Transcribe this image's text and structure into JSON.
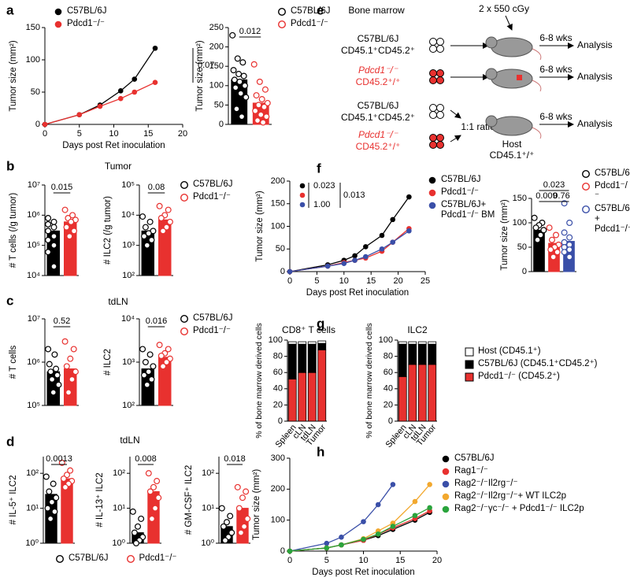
{
  "chart_data": [
    {
      "type": "line",
      "panel": "a",
      "xlabel": "Days post Ret inoculation",
      "ylabel": "Tumor size (mm²)",
      "x": [
        0,
        5,
        8,
        11,
        13,
        16
      ],
      "xlim": [
        0,
        20
      ],
      "xticks": [
        0,
        5,
        10,
        15,
        20
      ],
      "ylim": [
        0,
        150
      ],
      "yticks": [
        0,
        50,
        100,
        150
      ],
      "series": [
        {
          "name": "C57BL/6J",
          "color": "#000000",
          "values": [
            0,
            15,
            30,
            52,
            70,
            118
          ]
        },
        {
          "name": "Pdcd1⁻/⁻",
          "color": "#e8312f",
          "values": [
            0,
            15,
            28,
            40,
            50,
            65
          ]
        }
      ],
      "annotations": [
        "0.07"
      ]
    },
    {
      "type": "bar",
      "ylabel": "Tumor size (mm²)",
      "ylim": [
        0,
        250
      ],
      "yticks": [
        0,
        50,
        100,
        150,
        200,
        250
      ],
      "series": [
        {
          "name": "C57BL/6J",
          "color": "#000000",
          "values": [
            115
          ],
          "points": [
            230,
            170,
            160,
            140,
            130,
            125,
            115,
            110,
            100,
            95,
            80,
            70,
            40,
            20
          ]
        },
        {
          "name": "Pdcd1⁻/⁻",
          "color": "#e8312f",
          "values": [
            55
          ],
          "points": [
            155,
            110,
            90,
            75,
            65,
            55,
            50,
            45,
            35,
            25,
            20,
            10,
            5
          ]
        }
      ],
      "annotations": [
        "0.012"
      ]
    },
    {
      "type": "bar",
      "panel": "b",
      "title": "Tumor",
      "ylabel": "# T cells (/g tumor)",
      "log": true,
      "ylim": [
        10000,
        10000000
      ],
      "yticks": [
        {
          "value": 10000,
          "label": "10⁴"
        },
        {
          "value": 100000,
          "label": "10⁵"
        },
        {
          "value": 1000000,
          "label": "10⁶"
        },
        {
          "value": 10000000,
          "label": "10⁷"
        }
      ],
      "series": [
        {
          "color": "#000000",
          "values": [
            300000
          ],
          "points": [
            800000,
            600000,
            500000,
            400000,
            300000,
            200000,
            150000,
            100000,
            60000,
            20000
          ]
        },
        {
          "color": "#e8312f",
          "values": [
            600000
          ],
          "points": [
            1500000,
            1000000,
            800000,
            700000,
            600000,
            400000,
            300000,
            200000
          ]
        }
      ],
      "annotations": [
        "0.015"
      ]
    },
    {
      "type": "bar",
      "ylabel": "# ILC2 (/g tumor)",
      "log": true,
      "ylim": [
        100,
        100000
      ],
      "yticks": [
        {
          "value": 100,
          "label": "10²"
        },
        {
          "value": 1000,
          "label": "10³"
        },
        {
          "value": 10000,
          "label": "10⁴"
        },
        {
          "value": 100000,
          "label": "10⁵"
        }
      ],
      "series": [
        {
          "name": "C57BL/6J",
          "color": "#000000",
          "values": [
            3000
          ],
          "points": [
            9000,
            6000,
            4000,
            3000,
            2500,
            2000,
            1500,
            1000
          ]
        },
        {
          "name": "Pdcd1⁻/⁻",
          "color": "#e8312f",
          "values": [
            7000
          ],
          "points": [
            20000,
            15000,
            10000,
            8000,
            6000,
            4000,
            3000
          ]
        }
      ],
      "annotations": [
        "0.08"
      ]
    },
    {
      "type": "bar",
      "panel": "c",
      "title": "tdLN",
      "ylabel": "# T cells",
      "log": true,
      "ylim": [
        100000,
        10000000
      ],
      "yticks": [
        {
          "value": 100000,
          "label": "10⁵"
        },
        {
          "value": 1000000,
          "label": "10⁶"
        },
        {
          "value": 10000000,
          "label": "10⁷"
        }
      ],
      "series": [
        {
          "color": "#000000",
          "values": [
            600000
          ],
          "points": [
            2000000,
            1500000,
            900000,
            700000,
            600000,
            500000,
            400000,
            300000,
            200000
          ]
        },
        {
          "color": "#e8312f",
          "values": [
            700000
          ],
          "points": [
            3000000,
            2000000,
            1200000,
            800000,
            600000,
            400000,
            200000
          ]
        }
      ],
      "annotations": [
        "0.52"
      ]
    },
    {
      "type": "bar",
      "ylabel": "# ILC2",
      "log": true,
      "ylim": [
        100,
        10000
      ],
      "yticks": [
        {
          "value": 100,
          "label": "10²"
        },
        {
          "value": 1000,
          "label": "10³"
        },
        {
          "value": 10000,
          "label": "10⁴"
        }
      ],
      "series": [
        {
          "name": "C57BL/6J",
          "color": "#000000",
          "values": [
            700
          ],
          "points": [
            2000,
            1500,
            1000,
            800,
            600,
            500,
            400,
            300
          ]
        },
        {
          "name": "Pdcd1⁻/⁻",
          "color": "#e8312f",
          "values": [
            1300
          ],
          "points": [
            2500,
            2000,
            1600,
            1400,
            1200,
            1000,
            800
          ]
        }
      ],
      "annotations": [
        "0.016"
      ]
    },
    {
      "type": "bar",
      "panel": "d",
      "title": "tdLN",
      "ylabel": "# IL-5⁺ ILC2",
      "log": true,
      "ylim": [
        1,
        300
      ],
      "yticks": [
        {
          "value": 1,
          "label": "10⁰"
        },
        {
          "value": 10,
          "label": "10¹"
        },
        {
          "value": 100,
          "label": "10²"
        }
      ],
      "series": [
        {
          "name": "C57BL/6J",
          "color": "#000000",
          "values": [
            25
          ],
          "points": [
            80,
            50,
            30,
            20,
            15,
            10,
            8,
            5
          ]
        },
        {
          "name": "Pdcd1⁻/⁻",
          "color": "#e8312f",
          "values": [
            70
          ],
          "points": [
            200,
            120,
            90,
            70,
            60,
            50,
            40
          ]
        }
      ],
      "annotations": [
        "0.0013"
      ]
    },
    {
      "type": "bar",
      "ylabel": "# IL-13⁺ ILC2",
      "log": true,
      "ylim": [
        1,
        300
      ],
      "yticks": [
        {
          "value": 1,
          "label": "10⁰"
        },
        {
          "value": 10,
          "label": "10¹"
        },
        {
          "value": 100,
          "label": "10²"
        }
      ],
      "series": [
        {
          "color": "#000000",
          "values": [
            2
          ],
          "points": [
            8,
            5,
            3,
            2,
            1.5,
            1.2,
            1
          ]
        },
        {
          "color": "#e8312f",
          "values": [
            30
          ],
          "points": [
            100,
            60,
            40,
            30,
            20,
            10,
            5
          ]
        }
      ],
      "annotations": [
        "0.008"
      ]
    },
    {
      "type": "bar",
      "ylabel": "# GM-CSF⁺ ILC2",
      "log": true,
      "ylim": [
        1,
        300
      ],
      "yticks": [
        {
          "value": 1,
          "label": "10⁰"
        },
        {
          "value": 10,
          "label": "10¹"
        },
        {
          "value": 100,
          "label": "10²"
        }
      ],
      "series": [
        {
          "color": "#000000",
          "values": [
            3
          ],
          "points": [
            10,
            6,
            4,
            3,
            2,
            1.5,
            1.2
          ]
        },
        {
          "color": "#e8312f",
          "values": [
            10
          ],
          "points": [
            40,
            30,
            20,
            10,
            5,
            3,
            2
          ]
        }
      ],
      "annotations": [
        "0.018"
      ]
    },
    {
      "type": "line",
      "panel": "f",
      "xlabel": "Days post Ret inoculation",
      "ylabel": "Tumor size (mm²)",
      "x": [
        0,
        7,
        10,
        12,
        14,
        17,
        19,
        22
      ],
      "xlim": [
        0,
        25
      ],
      "xticks": [
        0,
        5,
        10,
        15,
        20,
        25
      ],
      "ylim": [
        0,
        200
      ],
      "yticks": [
        0,
        50,
        100,
        150,
        200
      ],
      "series": [
        {
          "name": "C57BL/6J",
          "color": "#000000",
          "values": [
            0,
            15,
            25,
            35,
            55,
            80,
            115,
            165
          ]
        },
        {
          "name": "Pdcd1⁻/⁻",
          "color": "#e8312f",
          "values": [
            0,
            12,
            20,
            25,
            30,
            45,
            65,
            95
          ]
        },
        {
          "name": "C57BL/6J+ Pdcd1⁻/⁻ BM",
          "color": "#3a4fa8",
          "values": [
            0,
            12,
            18,
            25,
            33,
            50,
            65,
            90
          ]
        }
      ],
      "annotations": [
        "0.023",
        "1.00",
        "0.013"
      ]
    },
    {
      "type": "bar",
      "ylabel": "Tumor size (mm²)",
      "ylim": [
        0,
        150
      ],
      "yticks": [
        0,
        50,
        100,
        150
      ],
      "series": [
        {
          "name": "C57BL/6J",
          "color": "#000000",
          "values": [
            85
          ],
          "points": [
            110,
            100,
            95,
            90,
            85,
            75,
            65
          ]
        },
        {
          "name": "Pdcd1⁻/⁻",
          "color": "#e8312f",
          "values": [
            58
          ],
          "points": [
            90,
            75,
            65,
            55,
            50,
            45,
            40,
            30
          ]
        },
        {
          "name": "C57BL/6J + Pdcd1⁻/⁻",
          "color": "#3a4fa8",
          "values": [
            62
          ],
          "points": [
            140,
            100,
            80,
            70,
            60,
            55,
            50,
            45,
            40,
            30
          ]
        }
      ],
      "annotations": [
        "0.023",
        "0.009",
        "0.76"
      ]
    },
    {
      "type": "stacked_bar",
      "panel": "g",
      "title": "CD8⁺ T cells",
      "ylabel": "% of bone marrow derived cells",
      "categories": [
        "Spleen",
        "cLN",
        "tdLN",
        "Tumor"
      ],
      "ylim": [
        0,
        100
      ],
      "yticks": [
        0,
        20,
        40,
        60,
        80,
        100
      ],
      "series": [
        {
          "name": "Pdcd1⁻/⁻ (CD45.2⁺)",
          "color": "#e8312f",
          "values": [
            52,
            60,
            60,
            88
          ]
        },
        {
          "name": "C57BL/6J (CD45.1⁺CD45.2⁺)",
          "color": "#000000",
          "values": [
            43,
            35,
            35,
            8
          ]
        },
        {
          "name": "Host (CD45.1⁺)",
          "color": "#ffffff",
          "values": [
            3,
            3,
            3,
            3
          ]
        }
      ]
    },
    {
      "type": "stacked_bar",
      "title": "ILC2",
      "ylabel": "% of bone marrow derived cells",
      "categories": [
        "Spleen",
        "cLN",
        "tdLN",
        "Tumor"
      ],
      "ylim": [
        0,
        100
      ],
      "yticks": [
        0,
        20,
        40,
        60,
        80,
        100
      ],
      "series": [
        {
          "color": "#e8312f",
          "values": [
            55,
            70,
            70,
            70
          ]
        },
        {
          "color": "#000000",
          "values": [
            40,
            25,
            25,
            25
          ]
        },
        {
          "color": "#ffffff",
          "values": [
            3,
            3,
            3,
            3
          ]
        }
      ]
    },
    {
      "type": "line",
      "panel": "h",
      "xlabel": "Days post Ret inoculation",
      "ylabel": "Tumor size (mm²)",
      "x": [
        0,
        5,
        7,
        10,
        12,
        14,
        17,
        19
      ],
      "xlim": [
        0,
        20
      ],
      "xticks": [
        0,
        5,
        10,
        15,
        20
      ],
      "ylim": [
        0,
        300
      ],
      "yticks": [
        0,
        100,
        200,
        300
      ],
      "series": [
        {
          "name": "C57BL/6J",
          "color": "#000000",
          "values": [
            0,
            10,
            20,
            35,
            50,
            70,
            100,
            125
          ]
        },
        {
          "name": "Rag1⁻/⁻",
          "color": "#e8312f",
          "values": [
            0,
            10,
            20,
            35,
            55,
            75,
            105,
            130
          ]
        },
        {
          "name": "Rag2⁻/⁻Il2rg⁻/⁻",
          "color": "#3a4fa8",
          "values": [
            0,
            25,
            45,
            95,
            150,
            215,
            null,
            null
          ]
        },
        {
          "name": "Rag2⁻/⁻Il2rg⁻/⁻+ WT ILC2p",
          "color": "#f2a82e",
          "values": [
            0,
            10,
            20,
            40,
            65,
            90,
            160,
            215
          ]
        },
        {
          "name": "Rag2⁻/⁻γc⁻/⁻ + Pdcd1⁻/⁻ ILC2p",
          "color": "#2aa43c",
          "values": [
            0,
            10,
            20,
            38,
            55,
            80,
            115,
            140
          ]
        }
      ]
    }
  ],
  "diagram": {
    "panel": "e",
    "bone_marrow": "Bone marrow",
    "irradiation": "2 x 550 cGy",
    "donors": [
      {
        "strain": "C57BL/6J",
        "marker": "CD45.1⁺CD45.2⁺"
      },
      {
        "strain": "Pdcd1⁻/⁻",
        "marker": "CD45.2⁺/⁺"
      },
      {
        "strain": "C57BL/6J",
        "marker": "CD45.1⁺CD45.2⁺"
      },
      {
        "strain": "Pdcd1⁻/⁻",
        "marker": "CD45.2⁺/⁺"
      }
    ],
    "ratio": "1:1 ratio",
    "wait": [
      "6-8 wks",
      "6-8 wks",
      "6-8 wks"
    ],
    "readout": [
      "Analysis",
      "Analysis",
      "Analysis"
    ],
    "host": {
      "label": "Host",
      "marker": "CD45.1⁺/⁺"
    }
  }
}
